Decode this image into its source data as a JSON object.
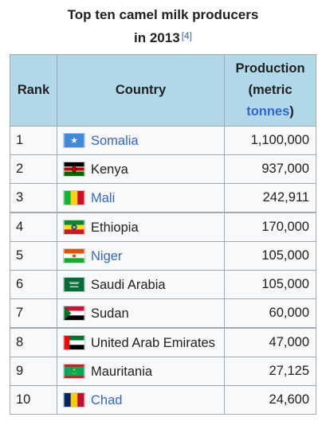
{
  "caption": {
    "title_line1": "Top ten camel milk producers",
    "title_line2": "in 2013",
    "ref": "[4]"
  },
  "columns": {
    "rank": "Rank",
    "country": "Country",
    "prod_line1": "Production",
    "prod_line2": "(metric",
    "prod_link": "tonnes",
    "prod_close": ")"
  },
  "rows": [
    {
      "rank": "1",
      "country": "Somalia",
      "production": "1,100,000",
      "link": true,
      "flag": "somalia-flag-icon"
    },
    {
      "rank": "2",
      "country": "Kenya",
      "production": "937,000",
      "link": false,
      "flag": "kenya-flag-icon"
    },
    {
      "rank": "3",
      "country": "Mali",
      "production": "242,911",
      "link": true,
      "flag": "mali-flag-icon"
    },
    {
      "rank": "4",
      "country": "Ethiopia",
      "production": "170,000",
      "link": false,
      "flag": "ethiopia-flag-icon"
    },
    {
      "rank": "5",
      "country": "Niger",
      "production": "105,000",
      "link": true,
      "flag": "niger-flag-icon"
    },
    {
      "rank": "6",
      "country": "Saudi Arabia",
      "production": "105,000",
      "link": false,
      "flag": "saudi-arabia-flag-icon"
    },
    {
      "rank": "7",
      "country": "Sudan",
      "production": "60,000",
      "link": false,
      "flag": "sudan-flag-icon"
    },
    {
      "rank": "8",
      "country": "United Arab Emirates",
      "production": "47,000",
      "link": false,
      "flag": "uae-flag-icon"
    },
    {
      "rank": "9",
      "country": "Mauritania",
      "production": "27,125",
      "link": false,
      "flag": "mauritania-flag-icon"
    },
    {
      "rank": "10",
      "country": "Chad",
      "production": "24,600",
      "link": true,
      "flag": "chad-flag-icon"
    }
  ]
}
